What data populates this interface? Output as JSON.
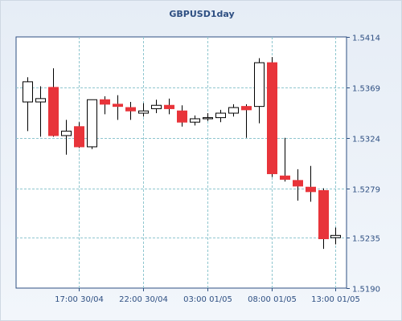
{
  "chart_data": {
    "type": "candlestick",
    "title": "GBPUSD1day",
    "x_tick_labels": [
      "17:00 30/04",
      "22:00 30/04",
      "03:00 01/05",
      "08:00 01/05",
      "13:00 01/05"
    ],
    "y_tick_labels": [
      "1.5414",
      "1.5369",
      "1.5324",
      "1.5279",
      "1.5235",
      "1.5190"
    ],
    "ylim": [
      1.519,
      1.5414
    ],
    "grid": true,
    "colors": {
      "up_body": "#ffffff",
      "down_body": "#e8343a",
      "outline": "#000000",
      "grid": "#8fc6cf",
      "background_top": "#e6edf6",
      "background_bottom": "#f2f6fb",
      "plot_area": "#ffffff",
      "text": "#2e4f82",
      "axis": "#2e4f82"
    },
    "candles": [
      {
        "open": 1.5356,
        "high": 1.5378,
        "low": 1.533,
        "close": 1.5374
      },
      {
        "open": 1.5356,
        "high": 1.537,
        "low": 1.5325,
        "close": 1.5359
      },
      {
        "open": 1.5369,
        "high": 1.5386,
        "low": 1.5325,
        "close": 1.5326
      },
      {
        "open": 1.5326,
        "high": 1.534,
        "low": 1.5309,
        "close": 1.533
      },
      {
        "open": 1.5334,
        "high": 1.5338,
        "low": 1.5315,
        "close": 1.5316
      },
      {
        "open": 1.5316,
        "high": 1.5358,
        "low": 1.5314,
        "close": 1.5358
      },
      {
        "open": 1.5358,
        "high": 1.5361,
        "low": 1.5345,
        "close": 1.5354
      },
      {
        "open": 1.5354,
        "high": 1.5362,
        "low": 1.534,
        "close": 1.5352
      },
      {
        "open": 1.5351,
        "high": 1.5356,
        "low": 1.534,
        "close": 1.5348
      },
      {
        "open": 1.5346,
        "high": 1.5355,
        "low": 1.5343,
        "close": 1.5348
      },
      {
        "open": 1.535,
        "high": 1.5358,
        "low": 1.5346,
        "close": 1.5353
      },
      {
        "open": 1.5353,
        "high": 1.5359,
        "low": 1.5345,
        "close": 1.535
      },
      {
        "open": 1.5348,
        "high": 1.5353,
        "low": 1.5334,
        "close": 1.5338
      },
      {
        "open": 1.5338,
        "high": 1.5344,
        "low": 1.5335,
        "close": 1.5341
      },
      {
        "open": 1.5341,
        "high": 1.5346,
        "low": 1.5339,
        "close": 1.5342
      },
      {
        "open": 1.5342,
        "high": 1.5349,
        "low": 1.5338,
        "close": 1.5346
      },
      {
        "open": 1.5346,
        "high": 1.5354,
        "low": 1.5343,
        "close": 1.5351
      },
      {
        "open": 1.5352,
        "high": 1.5354,
        "low": 1.5324,
        "close": 1.5349
      },
      {
        "open": 1.5352,
        "high": 1.5395,
        "low": 1.5337,
        "close": 1.5391
      },
      {
        "open": 1.5391,
        "high": 1.5396,
        "low": 1.5289,
        "close": 1.5292
      },
      {
        "open": 1.529,
        "high": 1.5324,
        "low": 1.5285,
        "close": 1.5287
      },
      {
        "open": 1.5286,
        "high": 1.5296,
        "low": 1.5268,
        "close": 1.5281
      },
      {
        "open": 1.528,
        "high": 1.5299,
        "low": 1.5267,
        "close": 1.5276
      },
      {
        "open": 1.5277,
        "high": 1.5279,
        "low": 1.5225,
        "close": 1.5234
      },
      {
        "open": 1.5235,
        "high": 1.5244,
        "low": 1.5229,
        "close": 1.5237
      }
    ]
  }
}
